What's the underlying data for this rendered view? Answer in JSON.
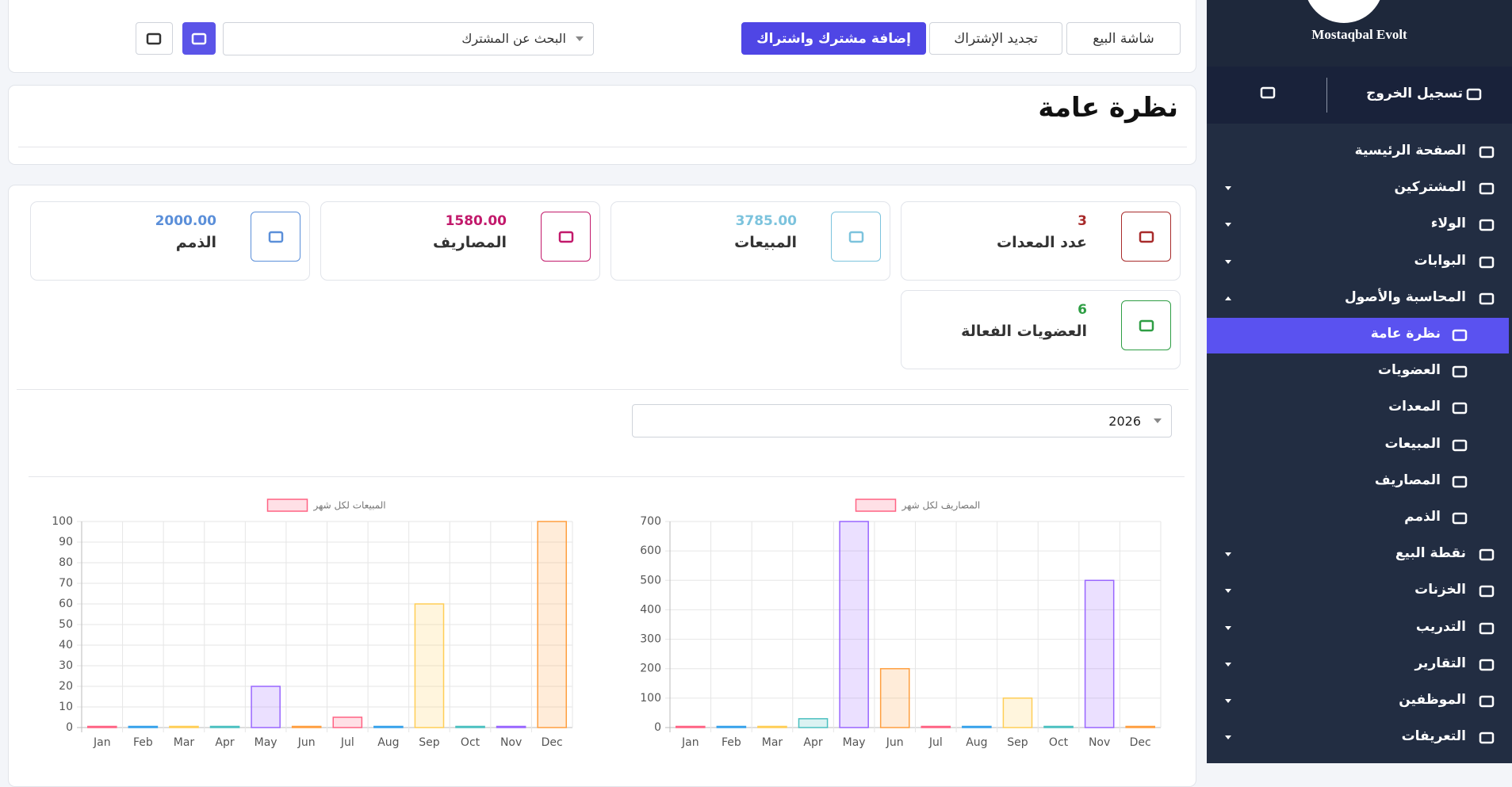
{
  "header": {
    "buttons": [
      "شاشة البيع",
      "تجديد الإشتراك",
      "إضافة مشترك واشتراك"
    ],
    "search_placeholder": "البحث عن المشترك"
  },
  "sidebar": {
    "brand": "Mostaqbal Evolt",
    "logout": "تسجيل الخروج",
    "menu": [
      {
        "label": "الصفحة الرئيسية"
      },
      {
        "label": "المشتركين",
        "caret": "down"
      },
      {
        "label": "الولاء",
        "caret": "down"
      },
      {
        "label": "البوابات",
        "caret": "down"
      },
      {
        "label": "المحاسبة والأصول",
        "caret": "up"
      },
      {
        "label": "نظرة عامة",
        "sub": true,
        "active": true
      },
      {
        "label": "العضويات",
        "sub": true
      },
      {
        "label": "المعدات",
        "sub": true
      },
      {
        "label": "المبيعات",
        "sub": true
      },
      {
        "label": "المصاريف",
        "sub": true
      },
      {
        "label": "الذمم",
        "sub": true
      },
      {
        "label": "نقطة البيع",
        "caret": "down"
      },
      {
        "label": "الخزنات",
        "caret": "down"
      },
      {
        "label": "التدريب",
        "caret": "down"
      },
      {
        "label": "التقارير",
        "caret": "down"
      },
      {
        "label": "الموظفين",
        "caret": "down"
      },
      {
        "label": "التعريفات",
        "caret": "down"
      }
    ]
  },
  "page_title": "نظرة عامة",
  "stats": [
    {
      "label": "عدد المعدات",
      "value": "3",
      "color": "#a82b2b"
    },
    {
      "label": "المبيعات",
      "value": "3785.00",
      "color": "#7cc3dd"
    },
    {
      "label": "المصاريف",
      "value": "1580.00",
      "color": "#c2196b"
    },
    {
      "label": "الذمم",
      "value": "2000.00",
      "color": "#5b8fd9"
    },
    {
      "label": "العضويات الفعالة",
      "value": "6",
      "color": "#2e9e44"
    }
  ],
  "year_select": "2026",
  "chart_data": [
    {
      "type": "bar",
      "categories": [
        "Jan",
        "Feb",
        "Mar",
        "Apr",
        "May",
        "Jun",
        "Jul",
        "Aug",
        "Sep",
        "Oct",
        "Nov",
        "Dec"
      ],
      "series": [
        {
          "name": "المبيعات لكل شهر",
          "color": "#ff6384",
          "colors": [
            "#ff6384",
            "#36a2eb",
            "#ffce56",
            "#4bc0c0",
            "#9966ff",
            "#ff9f40",
            "#ff6384",
            "#36a2eb",
            "#ffce56",
            "#4bc0c0",
            "#9966ff",
            "#ff9f40"
          ],
          "values": [
            0,
            0,
            0,
            0,
            20,
            0,
            5,
            0,
            60,
            0,
            0,
            100
          ]
        }
      ],
      "ylim": [
        0,
        100
      ],
      "yticks": [
        0,
        10,
        20,
        30,
        40,
        50,
        60,
        70,
        80,
        90,
        100
      ],
      "grid": true
    },
    {
      "type": "bar",
      "categories": [
        "Jan",
        "Feb",
        "Mar",
        "Apr",
        "May",
        "Jun",
        "Jul",
        "Aug",
        "Sep",
        "Oct",
        "Nov",
        "Dec"
      ],
      "series": [
        {
          "name": "المصاريف لكل شهر",
          "color": "#ff6384",
          "colors": [
            "#ff6384",
            "#36a2eb",
            "#ffce56",
            "#4bc0c0",
            "#9966ff",
            "#ff9f40",
            "#ff6384",
            "#36a2eb",
            "#ffce56",
            "#4bc0c0",
            "#9966ff",
            "#ff9f40"
          ],
          "values": [
            0,
            0,
            0,
            30,
            700,
            200,
            0,
            0,
            100,
            0,
            500,
            0
          ]
        }
      ],
      "ylim": [
        0,
        700
      ],
      "yticks": [
        0,
        100,
        200,
        300,
        400,
        500,
        600,
        700
      ],
      "grid": true
    }
  ]
}
